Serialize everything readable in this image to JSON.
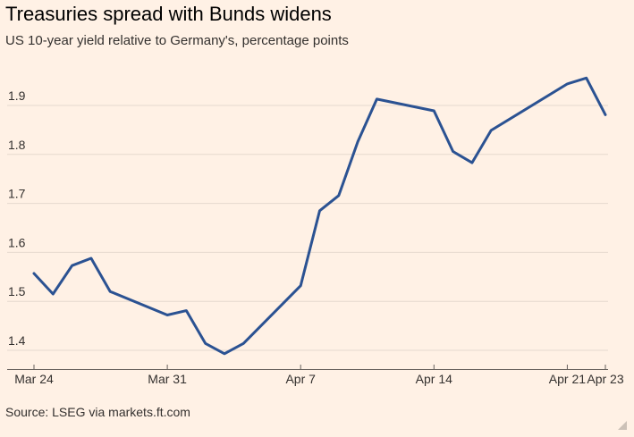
{
  "title": "Treasuries spread with Bunds widens",
  "subtitle": "US 10-year yield relative to Germany's, percentage points",
  "source": "Source: LSEG via markets.ft.com",
  "colors": {
    "background": "#FFF1E5",
    "line": "#2B5292",
    "grid": "#E6D9CE",
    "text": "#33302E"
  },
  "chart_data": {
    "type": "line",
    "title": "Treasuries spread with Bunds widens",
    "subtitle": "US 10-year yield relative to Germany's, percentage points",
    "xlabel": "",
    "ylabel": "",
    "ylim": [
      1.38,
      1.98
    ],
    "yticks": [
      1.4,
      1.5,
      1.6,
      1.7,
      1.8,
      1.9
    ],
    "ytick_labels": [
      "1.4",
      "1.5",
      "1.6",
      "1.7",
      "1.8",
      "1.9"
    ],
    "grid": true,
    "legend": "none",
    "x_dates": [
      "Mar 24",
      "Mar 25",
      "Mar 26",
      "Mar 27",
      "Mar 28",
      "Mar 31",
      "Apr 1",
      "Apr 2",
      "Apr 3",
      "Apr 4",
      "Apr 7",
      "Apr 8",
      "Apr 9",
      "Apr 10",
      "Apr 11",
      "Apr 14",
      "Apr 15",
      "Apr 16",
      "Apr 17",
      "Apr 21",
      "Apr 22",
      "Apr 23"
    ],
    "x_day_index": [
      0,
      1,
      2,
      3,
      4,
      7,
      8,
      9,
      10,
      11,
      14,
      15,
      16,
      17,
      18,
      21,
      22,
      23,
      24,
      28,
      29,
      30
    ],
    "x_ticks": [
      {
        "label": "Mar 24",
        "day_index": 0
      },
      {
        "label": "Mar 31",
        "day_index": 7
      },
      {
        "label": "Apr 7",
        "day_index": 14
      },
      {
        "label": "Apr 14",
        "day_index": 21
      },
      {
        "label": "Apr 21",
        "day_index": 28
      },
      {
        "label": "Apr 23",
        "day_index": 30
      }
    ],
    "series": [
      {
        "name": "US 10-year yield relative to Germany's",
        "values": [
          1.557,
          1.515,
          1.573,
          1.588,
          1.52,
          1.472,
          1.481,
          1.414,
          1.393,
          1.414,
          1.532,
          1.685,
          1.716,
          1.826,
          1.913,
          1.889,
          1.806,
          1.783,
          1.849,
          1.944,
          1.956,
          1.881
        ]
      }
    ]
  }
}
